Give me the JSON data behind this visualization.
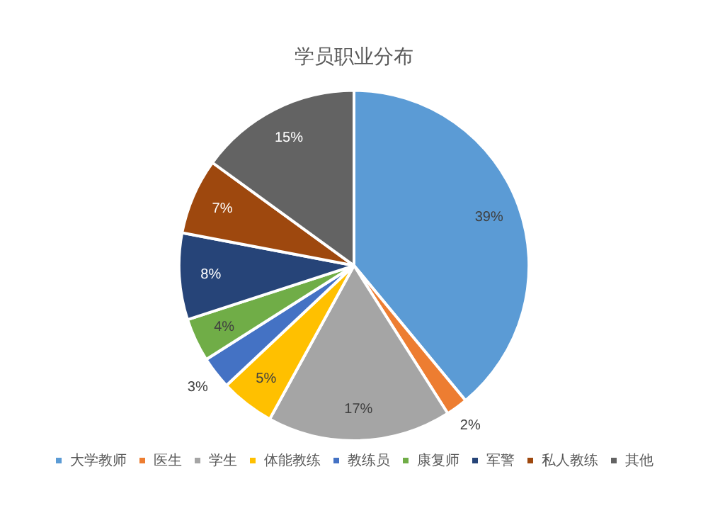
{
  "chart_data": {
    "type": "pie",
    "title": "学员职业分布",
    "categories": [
      "大学教师",
      "医生",
      "学生",
      "体能教练",
      "教练员",
      "康复师",
      "军警",
      "私人教练",
      "其他"
    ],
    "values": [
      39,
      2,
      17,
      5,
      3,
      4,
      8,
      7,
      15
    ],
    "colors": [
      "#5b9bd5",
      "#ed7d31",
      "#a5a5a5",
      "#ffc000",
      "#4472c4",
      "#70ad47",
      "#264478",
      "#9e480e",
      "#636363"
    ],
    "value_labels": [
      "39%",
      "2%",
      "17%",
      "5%",
      "3%",
      "4%",
      "8%",
      "7%",
      "15%"
    ],
    "legend": "bottom"
  }
}
